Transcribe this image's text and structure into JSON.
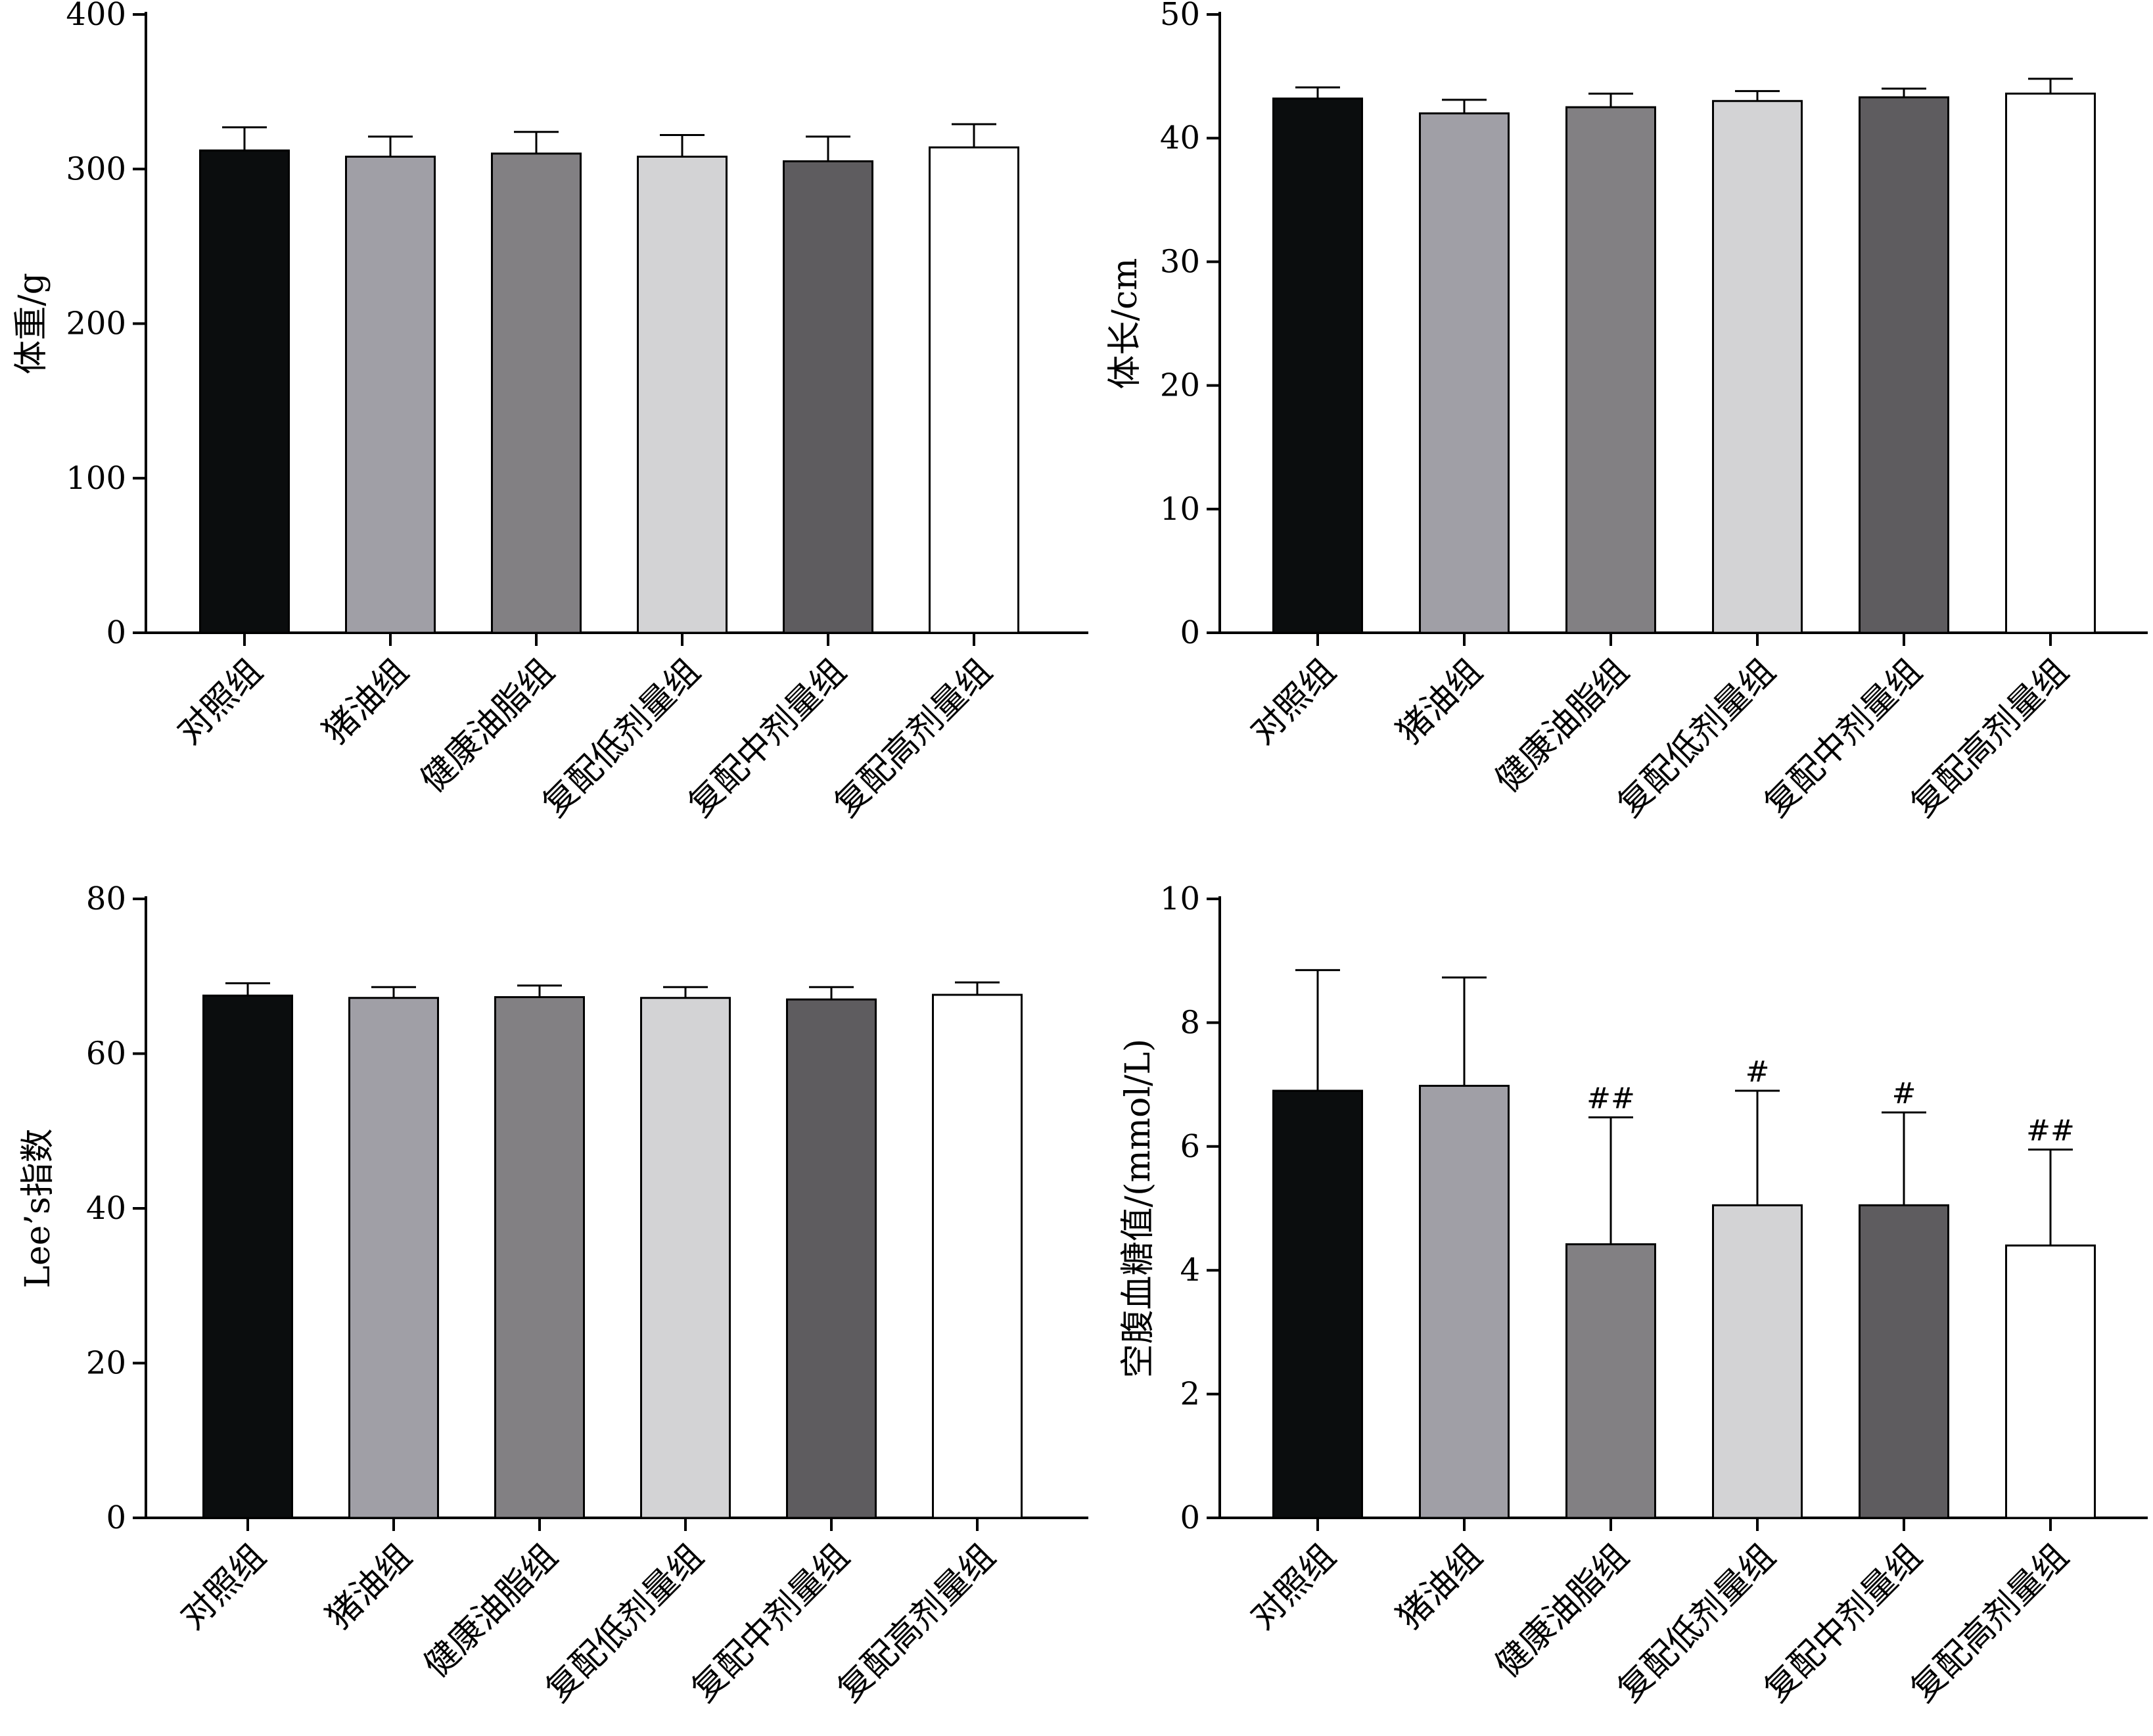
{
  "colors": {
    "axis": "#000000",
    "series": [
      "#0b0d0e",
      "#a09fa6",
      "#828083",
      "#d3d3d5",
      "#5e5c5f",
      "#ffffff"
    ]
  },
  "chart_data": [
    {
      "type": "bar",
      "categories": [
        "对照组",
        "猪油组",
        "健康油脂组",
        "复配低剂量组",
        "复配中剂量组",
        "复配高剂量组"
      ],
      "values": [
        312,
        308,
        310,
        308,
        305,
        314
      ],
      "errors": [
        15,
        13,
        14,
        14,
        16,
        15
      ],
      "annotations": [
        "",
        "",
        "",
        "",
        "",
        ""
      ],
      "ylabel": "体重/g",
      "ylim": [
        0,
        400
      ],
      "yticks": [
        0,
        100,
        200,
        300,
        400
      ],
      "grid": false
    },
    {
      "type": "bar",
      "categories": [
        "对照组",
        "猪油组",
        "健康油脂组",
        "复配低剂量组",
        "复配中剂量组",
        "复配高剂量组"
      ],
      "values": [
        43.2,
        42.0,
        42.5,
        43.0,
        43.3,
        43.6
      ],
      "errors": [
        0.9,
        1.1,
        1.1,
        0.8,
        0.7,
        1.2
      ],
      "annotations": [
        "",
        "",
        "",
        "",
        "",
        ""
      ],
      "ylabel": "体长/cm",
      "ylim": [
        0,
        50
      ],
      "yticks": [
        0,
        10,
        20,
        30,
        40,
        50
      ],
      "grid": false
    },
    {
      "type": "bar",
      "categories": [
        "对照组",
        "猪油组",
        "健康油脂组",
        "复配低剂量组",
        "复配中剂量组",
        "复配高剂量组"
      ],
      "values": [
        67.5,
        67.2,
        67.3,
        67.2,
        67.0,
        67.6
      ],
      "errors": [
        1.6,
        1.4,
        1.5,
        1.4,
        1.6,
        1.6
      ],
      "annotations": [
        "",
        "",
        "",
        "",
        "",
        ""
      ],
      "ylabel": "Lee’s指数",
      "ylim": [
        0,
        80
      ],
      "yticks": [
        0,
        20,
        40,
        60,
        80
      ],
      "grid": false
    },
    {
      "type": "bar",
      "categories": [
        "对照组",
        "猪油组",
        "健康油脂组",
        "复配低剂量组",
        "复配中剂量组",
        "复配高剂量组"
      ],
      "values": [
        6.9,
        6.98,
        4.42,
        5.05,
        5.05,
        4.4
      ],
      "errors": [
        1.95,
        1.75,
        2.05,
        1.85,
        1.5,
        1.55
      ],
      "annotations": [
        "",
        "",
        "##",
        "#",
        "#",
        "##"
      ],
      "ylabel": "空腹血糖值/(mmol/L)",
      "ylim": [
        0,
        10
      ],
      "yticks": [
        0,
        2,
        4,
        6,
        8,
        10
      ],
      "grid": false
    }
  ]
}
